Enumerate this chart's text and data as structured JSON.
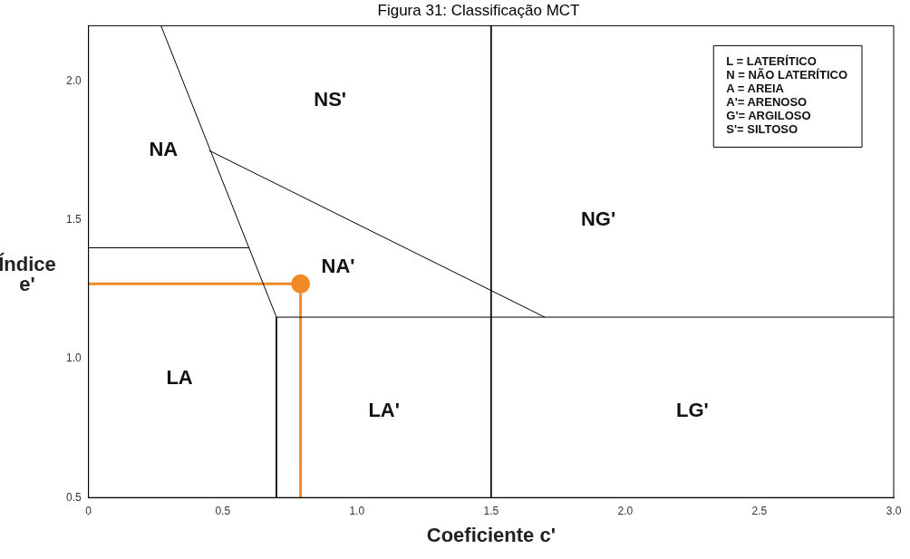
{
  "chart_data": {
    "type": "line",
    "title": "Figura 31: Classificação MCT",
    "xlabel": "Coeficiente c'",
    "ylabel": "Índice e'",
    "xlim": [
      0,
      3.0
    ],
    "ylim": [
      0.5,
      2.2
    ],
    "xticks": [
      0,
      {
        "value": 0.5,
        "label": "0.5"
      },
      {
        "value": 1,
        "label": "1.0"
      },
      {
        "value": 1.5,
        "label": "1.5"
      },
      {
        "value": 2,
        "label": "2.0"
      },
      {
        "value": 2.5,
        "label": "2.5"
      },
      {
        "value": 3,
        "label": "3.0"
      }
    ],
    "yticks": [
      {
        "value": 0.5,
        "label": "0.5"
      },
      {
        "value": 1,
        "label": "1.0"
      },
      {
        "value": 1.5,
        "label": "1.5"
      },
      {
        "value": 2,
        "label": "2.0"
      }
    ],
    "grid": false,
    "legend": false,
    "line_style": "solid",
    "series": [
      {
        "color": "#000000",
        "marker": "none",
        "x": [
          0.27,
          0.7,
          0.7
        ],
        "values": [
          2.2,
          1.15,
          0.5
        ]
      },
      {
        "color": "#000000",
        "marker": "none",
        "x": [
          0.45,
          1.7
        ],
        "values": [
          1.75,
          1.15
        ]
      },
      {
        "color": "#000000",
        "marker": "none",
        "x": [
          1.5,
          1.5
        ],
        "values": [
          2.2,
          0.5
        ]
      },
      {
        "color": "#000000",
        "marker": "none",
        "x": [
          0,
          0.6
        ],
        "values": [
          1.4,
          1.4
        ]
      },
      {
        "color": "#000000",
        "marker": "none",
        "x": [
          0.7,
          3.0
        ],
        "values": [
          1.15,
          1.15
        ]
      },
      {
        "color": "#f08a24",
        "marker": "none",
        "x": [
          0,
          0.79,
          0.79
        ],
        "values": [
          1.27,
          1.27,
          0.5
        ]
      },
      {
        "type": "scatter",
        "color": "#f08a24",
        "marker": "circle",
        "x": [
          0.79
        ],
        "values": [
          1.27
        ]
      }
    ],
    "annotations": [
      "NA",
      "NS'",
      "NG'",
      "NA'",
      "LA",
      "LA'",
      "LG'",
      "L = LATERÍTICO",
      "N = NÃO LATERÍTICO",
      "A = AREIA",
      "A'= ARENOSO",
      "G'= ARGILOSO",
      "S'= SILTOSO"
    ]
  }
}
